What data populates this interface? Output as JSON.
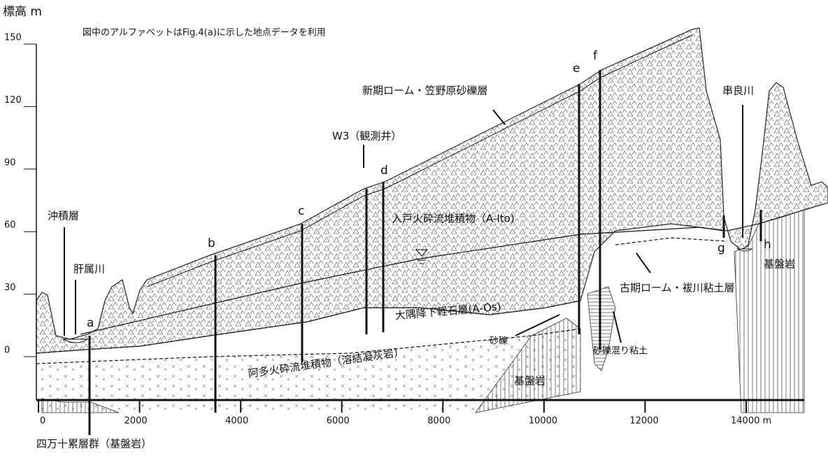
{
  "axis": {
    "y_label": "標高 m",
    "yticks": [
      0,
      30,
      60,
      90,
      120,
      150
    ],
    "xticks": [
      0,
      2000,
      4000,
      6000,
      8000,
      10000,
      12000,
      {
        "value": 14000,
        "label": "14000 m"
      }
    ]
  },
  "note": "図中のアルファベットはFig.4(a)に示した地点データを利用",
  "wells": [
    "a",
    "b",
    "c",
    "d",
    "e",
    "f",
    "g",
    "h"
  ],
  "labels": {
    "new_loam": "新期ローム・笠野原砂礫層",
    "w3": "W3（観測井）",
    "ito": "入戸火砕流堆積物（A-Ito)",
    "alluvium": "沖積層",
    "kimotsuki": "肝属川",
    "kushira": "串良川",
    "bedrock_right": "基盤岩",
    "old_loam": "古期ローム・袚川粘土層",
    "osumi": "大隅降下軽石層(A-Os)",
    "gravel": "砂礫",
    "gravel_clay": "砂礫混り粘土",
    "ata": "阿多火砕流堆積物（溶結凝灰岩）",
    "bedrock_mid": "基盤岩",
    "shimanto": "四万十累層群（基盤岩）"
  }
}
